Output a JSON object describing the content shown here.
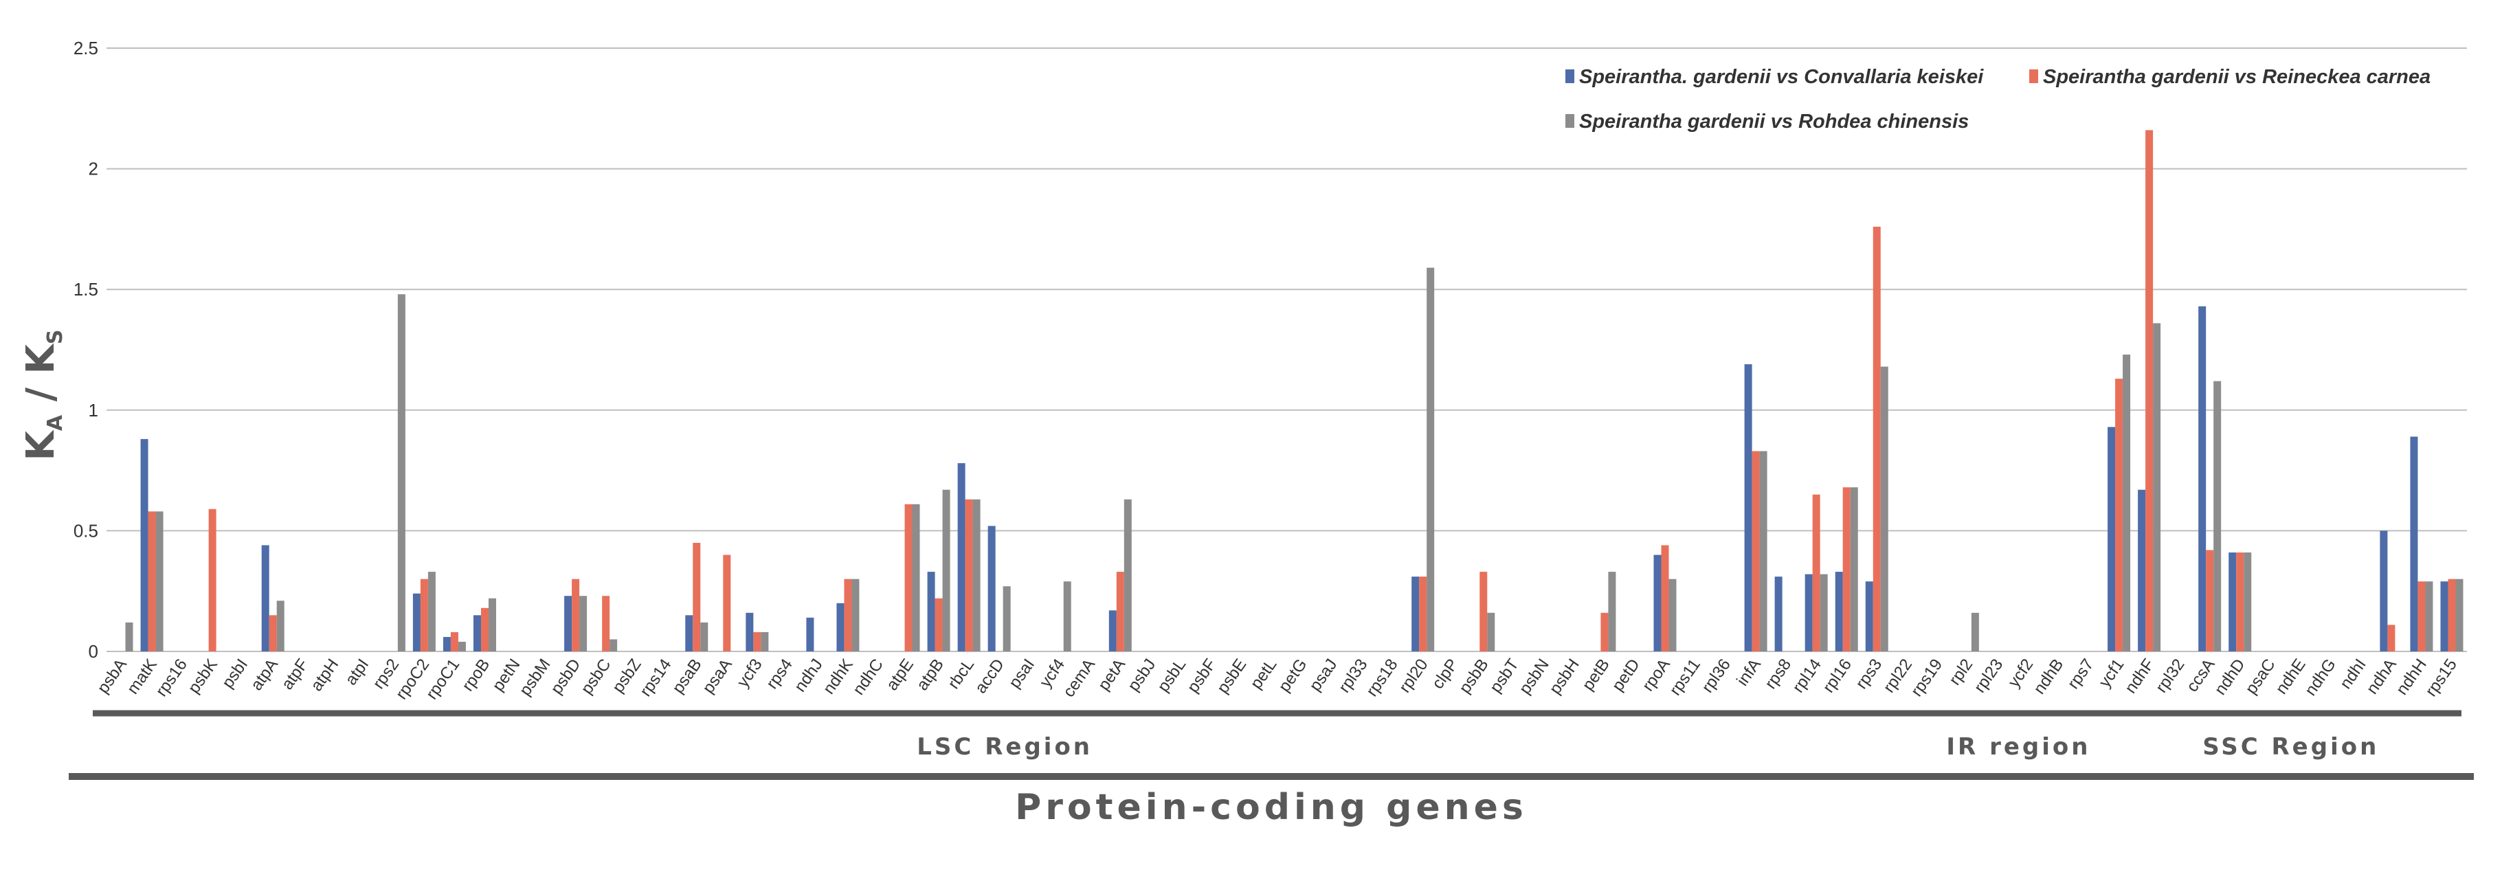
{
  "chart_data": {
    "type": "bar",
    "title": "",
    "xlabel": "Protein-coding genes",
    "ylabel": "KA / KS",
    "ylabel_main": "K",
    "ylabel_sub_a": "A",
    "ylabel_sep": " / ",
    "ylabel_sub_s": "S",
    "ylim": [
      0,
      2.5
    ],
    "yticks": [
      "0",
      "0.5",
      "1",
      "1.5",
      "2",
      "2.5"
    ],
    "ytick_values": [
      0,
      0.5,
      1,
      1.5,
      2,
      2.5
    ],
    "grid": true,
    "legend_position": "top-right",
    "categories": [
      "psbA",
      "matK",
      "rps16",
      "psbK",
      "psbI",
      "atpA",
      "atpF",
      "atpH",
      "atpI",
      "rps2",
      "rpoC2",
      "rpoC1",
      "rpoB",
      "petN",
      "psbM",
      "psbD",
      "psbC",
      "psbZ",
      "rps14",
      "psaB",
      "psaA",
      "ycf3",
      "rps4",
      "ndhJ",
      "ndhK",
      "ndhC",
      "atpE",
      "atpB",
      "rbcL",
      "accD",
      "psaI",
      "ycf4",
      "cemA",
      "petA",
      "psbJ",
      "psbL",
      "psbF",
      "psbE",
      "petL",
      "petG",
      "psaJ",
      "rpl33",
      "rps18",
      "rpl20",
      "clpP",
      "psbB",
      "psbT",
      "psbN",
      "psbH",
      "petB",
      "petD",
      "rpoA",
      "rps11",
      "rpl36",
      "infA",
      "rps8",
      "rpl14",
      "rpl16",
      "rps3",
      "rpl22",
      "rps19",
      "rpl2",
      "rpl23",
      "ycf2",
      "ndhB",
      "rps7",
      "ycf1",
      "ndhF",
      "rpl32",
      "ccsA",
      "ndhD",
      "psaC",
      "ndhE",
      "ndhG",
      "ndhI",
      "ndhA",
      "ndhH",
      "rps15"
    ],
    "series": [
      {
        "name": "Speirantha. gardenii vs Convallaria keiskei",
        "color": "#4e6ca8",
        "values": [
          0,
          0.88,
          0,
          0,
          0,
          0.44,
          0,
          0,
          0,
          0,
          0.24,
          0.06,
          0.15,
          0,
          0,
          0.23,
          0,
          0,
          0,
          0.15,
          0,
          0.16,
          0,
          0.14,
          0.2,
          0,
          0,
          0.33,
          0.78,
          0.52,
          0,
          0,
          0,
          0.17,
          0,
          0,
          0,
          0,
          0,
          0,
          0,
          0,
          0,
          0.31,
          0,
          0,
          0,
          0,
          0,
          0,
          0,
          0.4,
          0,
          0,
          1.19,
          0.31,
          0.32,
          0.33,
          0.29,
          0,
          0,
          0,
          0,
          0,
          0,
          0,
          0.93,
          0.67,
          0,
          1.43,
          0.41,
          0,
          0,
          0,
          0,
          0.5,
          0.89,
          0.29
        ]
      },
      {
        "name": "Speirantha gardenii vs Reineckea carnea",
        "color": "#e8705a",
        "values": [
          0,
          0.58,
          0,
          0.59,
          0,
          0.15,
          0,
          0,
          0,
          0,
          0.3,
          0.08,
          0.18,
          0,
          0,
          0.3,
          0.23,
          0,
          0,
          0.45,
          0.4,
          0.08,
          0,
          0,
          0.3,
          0,
          0.61,
          0.22,
          0.63,
          0,
          0,
          0,
          0,
          0.33,
          0,
          0,
          0,
          0,
          0,
          0,
          0,
          0,
          0,
          0.31,
          0,
          0.33,
          0,
          0,
          0,
          0.16,
          0,
          0.44,
          0,
          0,
          0.83,
          0,
          0.65,
          0.68,
          1.76,
          0,
          0,
          0,
          0,
          0,
          0,
          0,
          1.13,
          2.16,
          0,
          0.42,
          0.41,
          0,
          0,
          0,
          0,
          0.11,
          0.29,
          0.3
        ]
      },
      {
        "name": "Speirantha gardenii vs Rohdea chinensis",
        "color": "#8c8c8c",
        "values": [
          0.12,
          0.58,
          0,
          0,
          0,
          0.21,
          0,
          0,
          0,
          1.48,
          0.33,
          0.04,
          0.22,
          0,
          0,
          0.23,
          0.05,
          0,
          0,
          0.12,
          0,
          0.08,
          0,
          0,
          0.3,
          0,
          0.61,
          0.67,
          0.63,
          0.27,
          0,
          0.29,
          0,
          0.63,
          0,
          0,
          0,
          0,
          0,
          0,
          0,
          0,
          0,
          1.59,
          0,
          0.16,
          0,
          0,
          0,
          0.33,
          0,
          0.3,
          0,
          0,
          0.83,
          0,
          0.32,
          0.68,
          1.18,
          0,
          0,
          0.16,
          0,
          0,
          0,
          0,
          1.23,
          1.36,
          0,
          1.12,
          0.41,
          0,
          0,
          0,
          0,
          0,
          0.29,
          0.3
        ]
      }
    ],
    "regions": [
      {
        "label": "LSC Region",
        "start": "psbA",
        "end": "rpl22"
      },
      {
        "label": "IR region",
        "start": "rps19",
        "end": "ycf1"
      },
      {
        "label": "SSC Region",
        "start": "ndhF",
        "end": "rps15"
      }
    ]
  }
}
